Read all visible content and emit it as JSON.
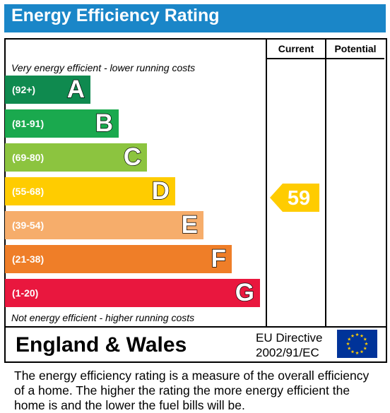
{
  "header": {
    "title": "Energy Efficiency Rating",
    "bg_color": "#1a86c8"
  },
  "columns": {
    "current": "Current",
    "potential": "Potential"
  },
  "notes": {
    "top": "Very energy efficient - lower running costs",
    "bottom": "Not energy efficient - higher running costs"
  },
  "chart_data": {
    "type": "bar",
    "categories": [
      "A",
      "B",
      "C",
      "D",
      "E",
      "F",
      "G"
    ],
    "bands": [
      {
        "letter": "A",
        "range": "(92+)",
        "color": "#0f8a4f"
      },
      {
        "letter": "B",
        "range": "(81-91)",
        "color": "#1aa94e"
      },
      {
        "letter": "C",
        "range": "(69-80)",
        "color": "#8cc43f"
      },
      {
        "letter": "D",
        "range": "(55-68)",
        "color": "#ffcc00"
      },
      {
        "letter": "E",
        "range": "(39-54)",
        "color": "#f6ad6b"
      },
      {
        "letter": "F",
        "range": "(21-38)",
        "color": "#ef7e28"
      },
      {
        "letter": "G",
        "range": "(1-20)",
        "color": "#e9173e"
      }
    ],
    "current": {
      "value": "59",
      "band": "D",
      "color": "#ffcc00"
    },
    "potential": null
  },
  "footer": {
    "region": "England & Wales",
    "directive_line1": "EU Directive",
    "directive_line2": "2002/91/EC",
    "flag_icon": "eu-flag-icon"
  },
  "description": "The energy efficiency rating is a measure of the overall efficiency of a home.  The higher the rating the more energy efficient the home is and the lower the fuel bills will be."
}
